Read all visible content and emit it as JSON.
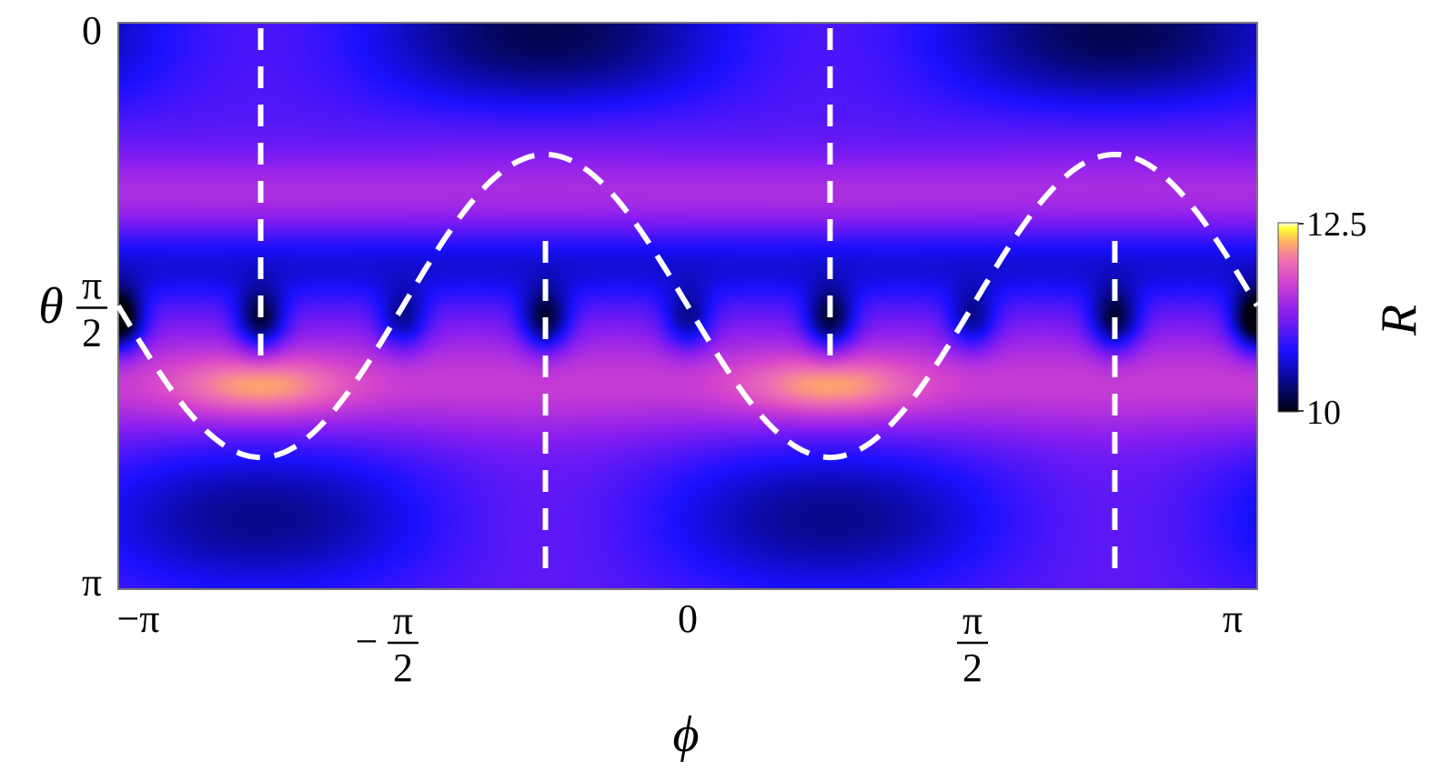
{
  "chart_data": {
    "type": "heatmap",
    "x": {
      "name": "φ",
      "label": "ϕ",
      "range": [
        -3.14159,
        3.14159
      ],
      "ticks": [
        {
          "value": -3.14159,
          "num": "−π",
          "den": ""
        },
        {
          "value": -1.5708,
          "num": "π",
          "den": "2",
          "sign": "−"
        },
        {
          "value": 0,
          "num": "0",
          "den": ""
        },
        {
          "value": 1.5708,
          "num": "π",
          "den": "2"
        },
        {
          "value": 3.14159,
          "num": "π",
          "den": ""
        }
      ]
    },
    "y": {
      "name": "θ",
      "label": "θ",
      "range": [
        0,
        3.14159
      ],
      "inverted": true,
      "ticks": [
        {
          "value": 0,
          "num": "0",
          "den": ""
        },
        {
          "value": 1.5708,
          "num": "π",
          "den": "2"
        },
        {
          "value": 3.14159,
          "num": "π",
          "den": ""
        }
      ]
    },
    "colorbar": {
      "label": "R",
      "min": 10,
      "max": 12.5,
      "tick_labels": [
        "12.5",
        "10"
      ]
    },
    "colors": {
      "black": "#000010",
      "blue": "#1a10ff",
      "violet": "#8a1ef0",
      "pink": "#f070b0",
      "yellow": "#ffff30"
    },
    "dashed_curves": [
      {
        "kind": "sinusoid",
        "center_theta": 1.5708,
        "amplitude": 0.84,
        "period_phi": 3.14159,
        "phase_phi": -2.356
      }
    ],
    "dashed_vertical_lines": [
      {
        "phi": -2.356,
        "theta_from": 0.03,
        "theta_to": 1.85
      },
      {
        "phi": -0.785,
        "theta_from": 1.21,
        "theta_to": 3.11
      },
      {
        "phi": 0.785,
        "theta_from": 0.03,
        "theta_to": 1.85
      },
      {
        "phi": 2.356,
        "theta_from": 1.21,
        "theta_to": 3.11
      }
    ]
  }
}
